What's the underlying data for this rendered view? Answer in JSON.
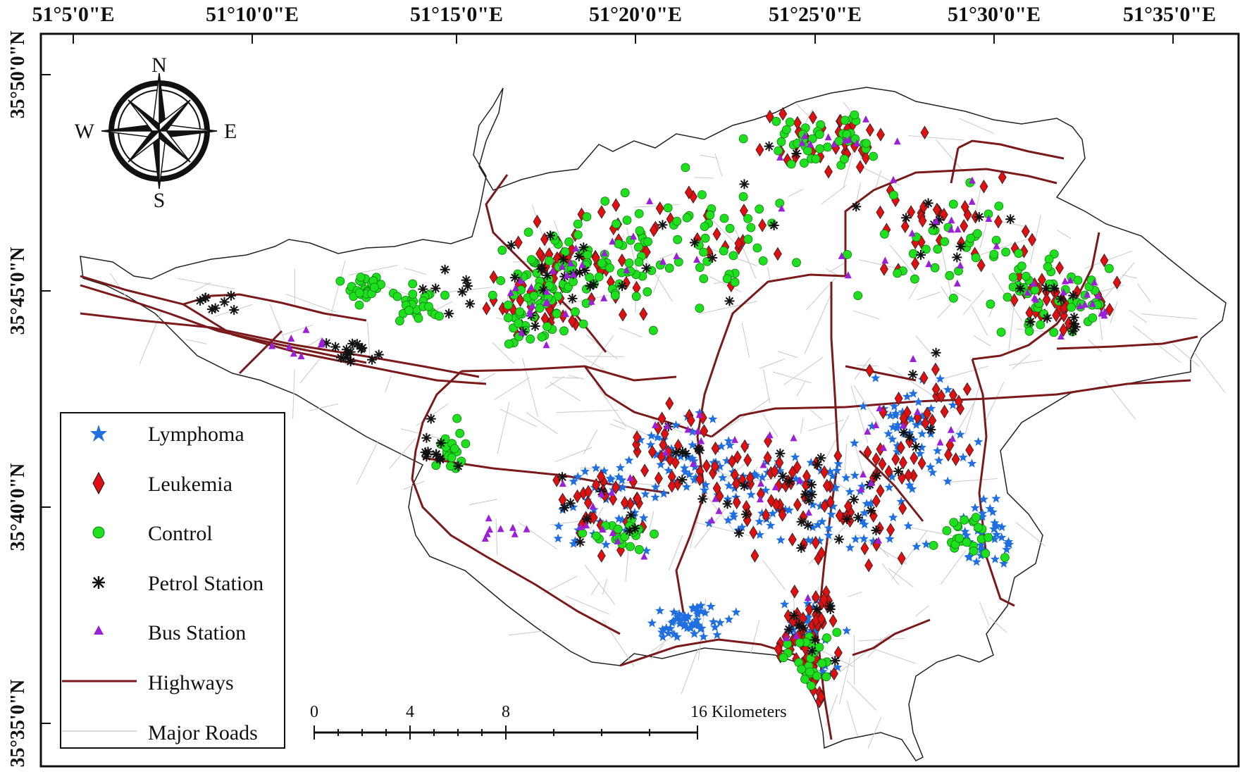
{
  "map": {
    "lon_ticks": [
      "51°5'0\"E",
      "51°10'0\"E",
      "51°15'0\"E",
      "51°20'0\"E",
      "51°25'0\"E",
      "51°30'0\"E",
      "51°35'0\"E"
    ],
    "lat_ticks": [
      "35°50'0\"N",
      "35°45'0\"N",
      "35°40'0\"N",
      "35°35'0\"N"
    ],
    "compass": {
      "n": "N",
      "s": "S",
      "e": "E",
      "w": "W"
    },
    "legend": [
      {
        "label": "Lymphoma",
        "symbol": "star",
        "color": "#1f6fe0"
      },
      {
        "label": "Leukemia",
        "symbol": "diamond",
        "color": "#e01010"
      },
      {
        "label": "Control",
        "symbol": "circle",
        "color": "#1fe01f"
      },
      {
        "label": "Petrol Station",
        "symbol": "asterisk",
        "color": "#111111"
      },
      {
        "label": "Bus Station",
        "symbol": "triangle",
        "color": "#9b1fd6"
      },
      {
        "label": "Highways",
        "symbol": "line",
        "color": "#7a1a1a"
      },
      {
        "label": "Major Roads",
        "symbol": "line",
        "color": "#cccccc"
      }
    ],
    "scalebar": {
      "ticks": [
        "0",
        "4",
        "8",
        "16 Kilometers"
      ]
    }
  }
}
